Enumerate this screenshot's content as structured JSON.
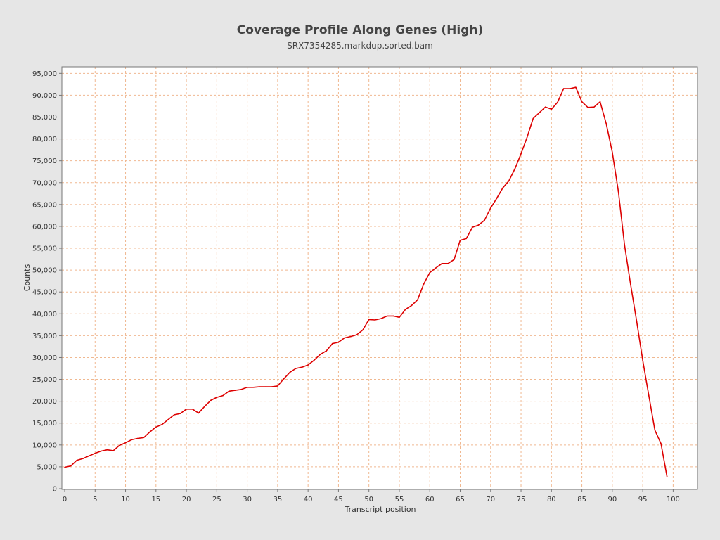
{
  "chart_data": {
    "type": "line",
    "title": "Coverage Profile Along Genes (High)",
    "subtitle": "SRX7354285.markdup.sorted.bam",
    "xlabel": "Transcript position",
    "ylabel": "Counts",
    "xlim": [
      0,
      104
    ],
    "ylim": [
      0,
      96500
    ],
    "x_ticks": [
      "0",
      "5",
      "10",
      "15",
      "20",
      "25",
      "30",
      "35",
      "40",
      "45",
      "50",
      "55",
      "60",
      "65",
      "70",
      "75",
      "80",
      "85",
      "90",
      "95",
      "100"
    ],
    "y_ticks": [
      "0",
      "5,000",
      "10,000",
      "15,000",
      "20,000",
      "25,000",
      "30,000",
      "35,000",
      "40,000",
      "45,000",
      "50,000",
      "55,000",
      "60,000",
      "65,000",
      "70,000",
      "75,000",
      "80,000",
      "85,000",
      "90,000",
      "95,000"
    ],
    "grid": true,
    "colors": {
      "line": "#dd0000",
      "grid": "#f0b890",
      "plot_bg": "#ffffff",
      "page_bg": "#e6e6e6"
    },
    "series": [
      {
        "x": [
          0,
          1,
          2,
          3,
          4,
          5,
          6,
          7,
          8,
          9,
          10,
          11,
          12,
          13,
          14,
          15,
          16,
          17,
          18,
          19,
          20,
          21,
          22,
          23,
          24,
          25,
          26,
          27,
          28,
          29,
          30,
          31,
          32,
          33,
          34,
          35,
          36,
          37,
          38,
          39,
          40,
          41,
          42,
          43,
          44,
          45,
          46,
          47,
          48,
          49,
          50,
          51,
          52,
          53,
          54,
          55,
          56,
          57,
          58,
          59,
          60,
          61,
          62,
          63,
          64,
          65,
          66,
          67,
          68,
          69,
          70,
          71,
          72,
          73,
          74,
          75,
          76,
          77,
          78,
          79,
          80,
          81,
          82,
          83,
          84,
          85,
          86,
          87,
          88,
          89,
          90,
          91,
          92,
          93,
          94,
          95,
          96,
          97,
          98,
          99
        ],
        "values": [
          4900,
          5200,
          6500,
          6900,
          7500,
          8100,
          8600,
          8900,
          8700,
          9900,
          10500,
          11200,
          11500,
          11700,
          13000,
          14100,
          14700,
          15800,
          16900,
          17200,
          18200,
          18200,
          17300,
          18800,
          20200,
          20900,
          21300,
          22300,
          22500,
          22700,
          23200,
          23200,
          23300,
          23300,
          23300,
          23500,
          25100,
          26600,
          27500,
          27800,
          28300,
          29400,
          30700,
          31500,
          33200,
          33500,
          34500,
          34800,
          35200,
          36300,
          38700,
          38600,
          38900,
          39500,
          39500,
          39200,
          41000,
          41900,
          43200,
          46800,
          49400,
          50500,
          51500,
          51500,
          52400,
          56800,
          57200,
          59800,
          60300,
          61400,
          64200,
          66400,
          68800,
          70400,
          73200,
          76600,
          80400,
          84700,
          86000,
          87300,
          86800,
          88400,
          91500,
          91500,
          91800,
          88500,
          87200,
          87300,
          88500,
          83500,
          77000,
          68000,
          55800,
          46800,
          38300,
          29400,
          21300,
          13400,
          10300,
          2700
        ]
      }
    ]
  }
}
